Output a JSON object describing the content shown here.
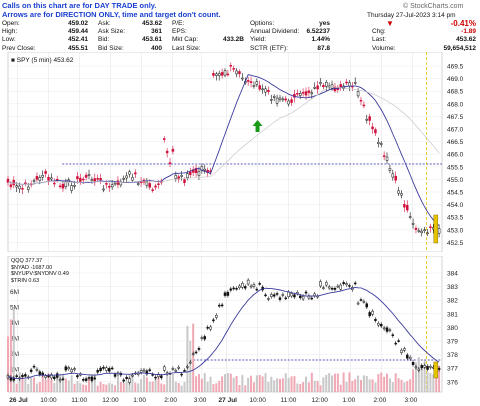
{
  "notes": [
    "Calls on this chart are for DAY TRADE only.",
    "Arrows are for DIRECTION ONLY, time and target don't count."
  ],
  "watermark": "© StockCharts.com",
  "header": {
    "date": "Thursday  27-Jul-2023  3:14 pm",
    "col1": [
      [
        "Open:",
        "459.02"
      ],
      [
        "High:",
        "459.44"
      ],
      [
        "Low:",
        "452.41"
      ],
      [
        "Prev Close:",
        "455.51"
      ]
    ],
    "col2": [
      [
        "Ask:",
        "453.62"
      ],
      [
        "Ask Size:",
        "361"
      ],
      [
        "Bid:",
        "453.61"
      ],
      [
        "Bid Size:",
        "400"
      ]
    ],
    "col3": [
      [
        "P/E:",
        ""
      ],
      [
        "EPS:",
        ""
      ],
      [
        "Mkt Cap:",
        "433.2B"
      ],
      [
        "Last Size:",
        ""
      ]
    ],
    "col4": [
      [
        "Options:",
        "yes"
      ],
      [
        "Annual Dividend:",
        "6.52237"
      ],
      [
        "Yield:",
        "1.44%"
      ],
      [
        "SCTR (ETF):",
        "87.8"
      ]
    ],
    "pct_change": "-0.41%",
    "col5": [
      [
        "Chg:",
        "-1.89"
      ],
      [
        "Last:",
        "453.62"
      ],
      [
        "Volume:",
        "59,654,512"
      ]
    ]
  },
  "top_chart": {
    "legend": "SPY (5 min) 453.62",
    "y_ticks": [
      "469.5",
      "469.0",
      "468.5",
      "468.0",
      "467.5",
      "467.0",
      "466.5",
      "466.0",
      "455.5",
      "455.0",
      "454.5",
      "454.0",
      "453.5",
      "453.0",
      "452.5"
    ],
    "x_ticks": [
      "26 Jul",
      "10:00",
      "11:00",
      "12:00",
      "1:00",
      "2:00",
      "3:00",
      "27 Jul",
      "10:00",
      "11:00",
      "12:00",
      "1:00",
      "2:00",
      "3:00"
    ]
  },
  "bottom_chart": {
    "legend_lines": [
      "QQQ 377.37",
      "$NYAD -1687.00",
      "$NYUPV:$NYDNV 0.49",
      "$TRIN 0.63"
    ],
    "y_ticks": [
      "384",
      "383",
      "382",
      "381",
      "380",
      "379",
      "378",
      "377",
      "376"
    ],
    "vol_ticks": [
      "6M",
      "5M",
      "4M",
      "3M",
      "2M",
      "1M"
    ],
    "x_ticks": [
      "26 Jul",
      "10:00",
      "11:00",
      "12:00",
      "1:00",
      "2:00",
      "3:00",
      "27 Jul",
      "10:00",
      "11:00",
      "12:00",
      "1:00",
      "2:00",
      "3:00"
    ]
  },
  "colors": {
    "up": "#111111",
    "down": "#d0103a",
    "ma": "#3b3b9e",
    "ref_line": "#2a2aa8",
    "arrow": "#1a9a1a",
    "highlight": "#e6c400",
    "negative": "#cc0000"
  }
}
